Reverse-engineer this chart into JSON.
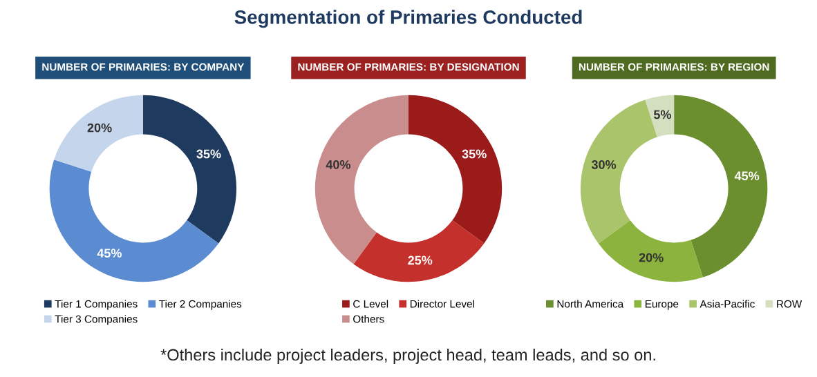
{
  "chart_data": [
    {
      "type": "donut",
      "title": "NUMBER OF PRIMARIES: BY COMPANY",
      "annotations": [
        "Segmentation of Primaries Conducted"
      ],
      "categories": [
        "Tier 1 Companies",
        "Tier 2 Companies",
        "Tier 3 Companies"
      ],
      "values": [
        35,
        45,
        20
      ],
      "colors": [
        "#1f3a5f",
        "#5b8bd0",
        "#c5d5ec"
      ],
      "value_labels": [
        "35%",
        "45%",
        "20%"
      ],
      "legend": "bottom"
    },
    {
      "type": "donut",
      "title": "NUMBER OF PRIMARIES: BY DESIGNATION",
      "categories": [
        "C Level",
        "Director Level",
        "Others"
      ],
      "values": [
        35,
        25,
        40
      ],
      "colors": [
        "#9b1a1a",
        "#c4302b",
        "#c98d8d"
      ],
      "value_labels": [
        "35%",
        "25%",
        "40%"
      ],
      "legend": "bottom"
    },
    {
      "type": "donut",
      "title": "NUMBER OF PRIMARIES: BY REGION",
      "annotations": [
        "*Others include project leaders, project head, team leads, and so on."
      ],
      "categories": [
        "North America",
        "Europe",
        "Asia-Pacific",
        "ROW"
      ],
      "values": [
        45,
        20,
        30,
        5
      ],
      "colors": [
        "#6b8e2e",
        "#8cb33e",
        "#a9c46a",
        "#d4dfc0"
      ],
      "value_labels": [
        "45%",
        "20%",
        "30%",
        "5%"
      ],
      "legend": "bottom"
    }
  ]
}
